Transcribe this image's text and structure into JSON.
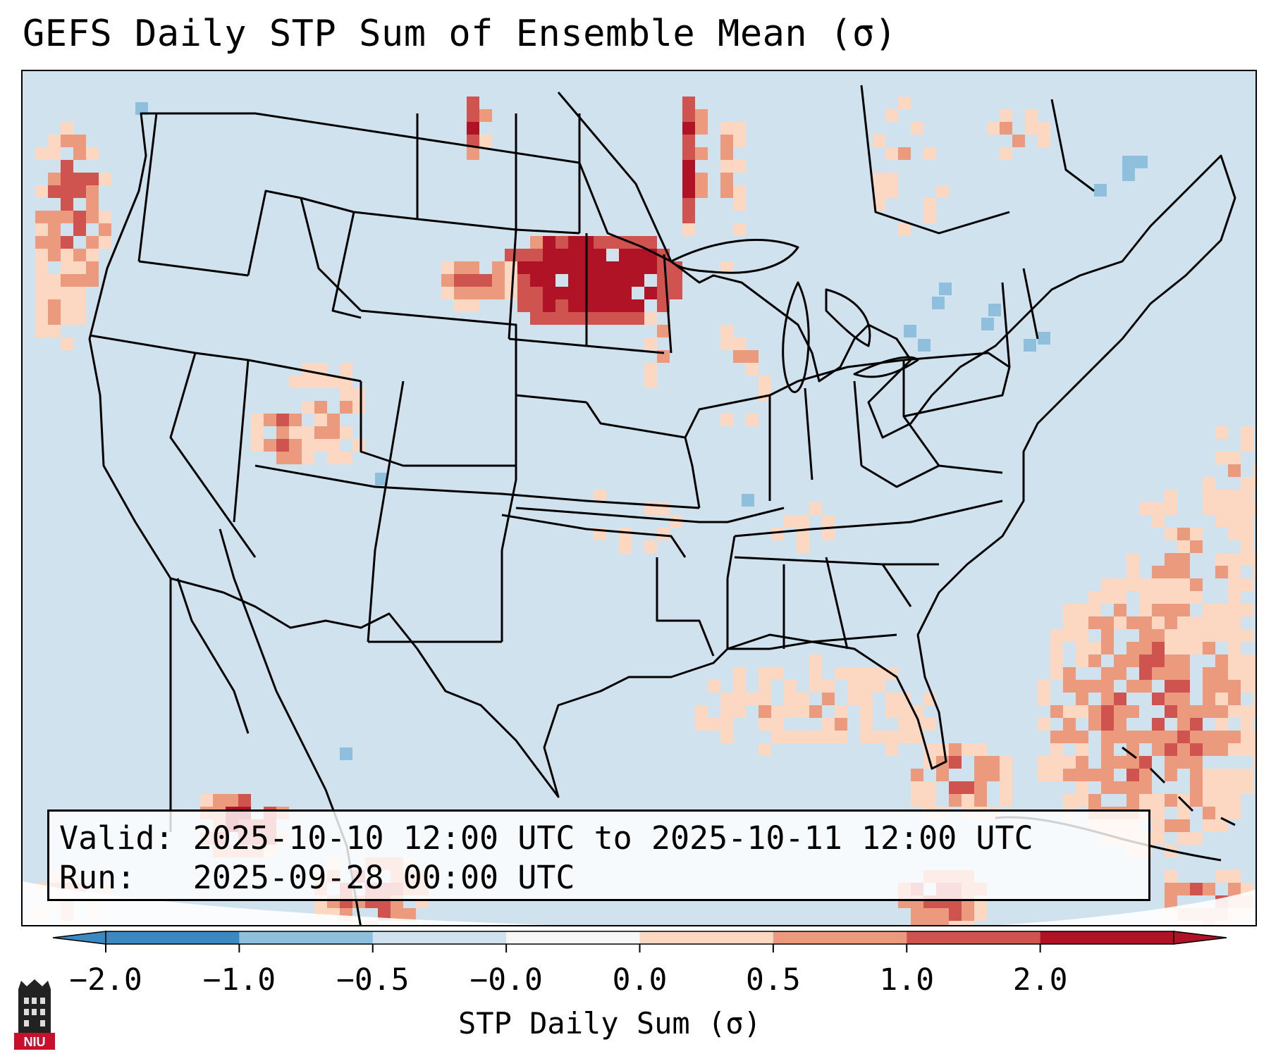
{
  "title": "GEFS Daily STP Sum of Ensemble Mean (σ)",
  "info": {
    "valid": "Valid: 2025-10-10 12:00 UTC to 2025-10-11 12:00 UTC",
    "run": "Run:   2025-09-28 00:00 UTC"
  },
  "colorbar": {
    "label": "STP Daily Sum (σ)",
    "ticks": [
      "−2.0",
      "−1.0",
      "−0.5",
      "−0.0",
      "0.0",
      "0.5",
      "1.0",
      "2.0"
    ],
    "colors": [
      "#3c88c0",
      "#8ec0dd",
      "#d0e2ee",
      "#f7f7f7",
      "#fcd7c2",
      "#ec9a7e",
      "#cf5450",
      "#b01325"
    ],
    "extend": "both"
  },
  "logo": {
    "icon": "niu-logo-icon",
    "text": "NIU"
  },
  "map": {
    "projection": "Lambert conformal, CONUS",
    "background_value": "-0.5 to -0.0",
    "max_anomaly_region": "North Dakota / South Dakota / eastern Montana, ≥ 2.0σ"
  }
}
